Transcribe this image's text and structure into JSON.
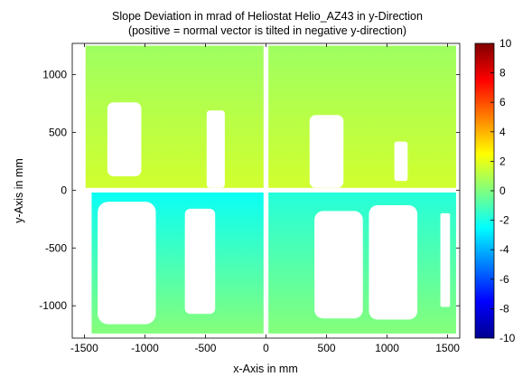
{
  "chart_data": {
    "type": "heatmap",
    "title": "Slope Deviation in mrad of Heliostat Helio_AZ43 in y-Direction",
    "subtitle": "(positive = normal vector is tilted in negative y-direction)",
    "xlabel": "x-Axis in mm",
    "ylabel": "y-Axis in mm",
    "xlim": [
      -1600,
      1600
    ],
    "ylim": [
      -1280,
      1270
    ],
    "xticks": [
      -1500,
      -1000,
      -500,
      0,
      500,
      1000,
      1500
    ],
    "xtick_labels": [
      "-1500",
      "-1000",
      "-500",
      "0",
      "500",
      "1000",
      "1500"
    ],
    "yticks": [
      1000,
      500,
      0,
      -500,
      -1000
    ],
    "ytick_labels": [
      "1000",
      "500",
      "0",
      "-500",
      "-1000"
    ],
    "colorbar": {
      "range": [
        -10,
        10
      ],
      "ticks": [
        10,
        8,
        6,
        4,
        2,
        0,
        -2,
        -4,
        -6,
        -8,
        -10
      ],
      "tick_labels": [
        "10",
        "8",
        "6",
        "4",
        "2",
        "0",
        "-2",
        "-4",
        "-6",
        "-8",
        "-10"
      ],
      "colormap": "jet"
    },
    "facets": [
      {
        "name": "upper-left",
        "x": [
          -1490,
          -20
        ],
        "y": [
          20,
          1250
        ],
        "value_top": 0.6,
        "value_bottom": 1.6
      },
      {
        "name": "upper-right",
        "x": [
          20,
          1570
        ],
        "y": [
          20,
          1250
        ],
        "value_top": 0.6,
        "value_bottom": 1.6
      },
      {
        "name": "lower-left",
        "x": [
          -1440,
          -20
        ],
        "y": [
          -1240,
          -20
        ],
        "value_top": -2.3,
        "value_bottom": 0.1
      },
      {
        "name": "lower-right",
        "x": [
          20,
          1570
        ],
        "y": [
          -1240,
          -20
        ],
        "value_top": -1.8,
        "value_bottom": 0.1
      }
    ],
    "missing_regions": [
      {
        "x": [
          -1310,
          -1030
        ],
        "y": [
          120,
          760
        ]
      },
      {
        "x": [
          -490,
          -340
        ],
        "y": [
          20,
          690
        ]
      },
      {
        "x": [
          360,
          640
        ],
        "y": [
          20,
          650
        ]
      },
      {
        "x": [
          1060,
          1170
        ],
        "y": [
          80,
          420
        ]
      },
      {
        "x": [
          -1390,
          -910
        ],
        "y": [
          -1160,
          -100
        ]
      },
      {
        "x": [
          -670,
          -420
        ],
        "y": [
          -1070,
          -160
        ]
      },
      {
        "x": [
          400,
          800
        ],
        "y": [
          -1110,
          -180
        ]
      },
      {
        "x": [
          850,
          1250
        ],
        "y": [
          -1120,
          -130
        ]
      },
      {
        "x": [
          1440,
          1520
        ],
        "y": [
          -1010,
          -200
        ]
      }
    ]
  }
}
